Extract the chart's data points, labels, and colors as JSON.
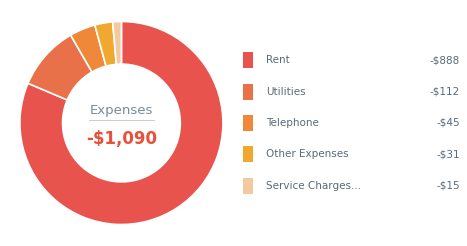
{
  "title_label": "Expenses",
  "center_value": "-$1,090",
  "center_value_color": "#e8503a",
  "title_color": "#7a8a99",
  "background_color": "#ffffff",
  "categories": [
    "Rent",
    "Utilities",
    "Telephone",
    "Other Expenses",
    "Service Charges..."
  ],
  "values": [
    888,
    112,
    45,
    31,
    15
  ],
  "amounts": [
    "-$888",
    "-$112",
    "-$45",
    "-$31",
    "-$15"
  ],
  "colors": [
    "#e8534e",
    "#e8714a",
    "#f0883a",
    "#f0a830",
    "#f5c9a0"
  ],
  "legend_text_color": "#5a6a7a",
  "legend_value_color": "#5a6a7a"
}
